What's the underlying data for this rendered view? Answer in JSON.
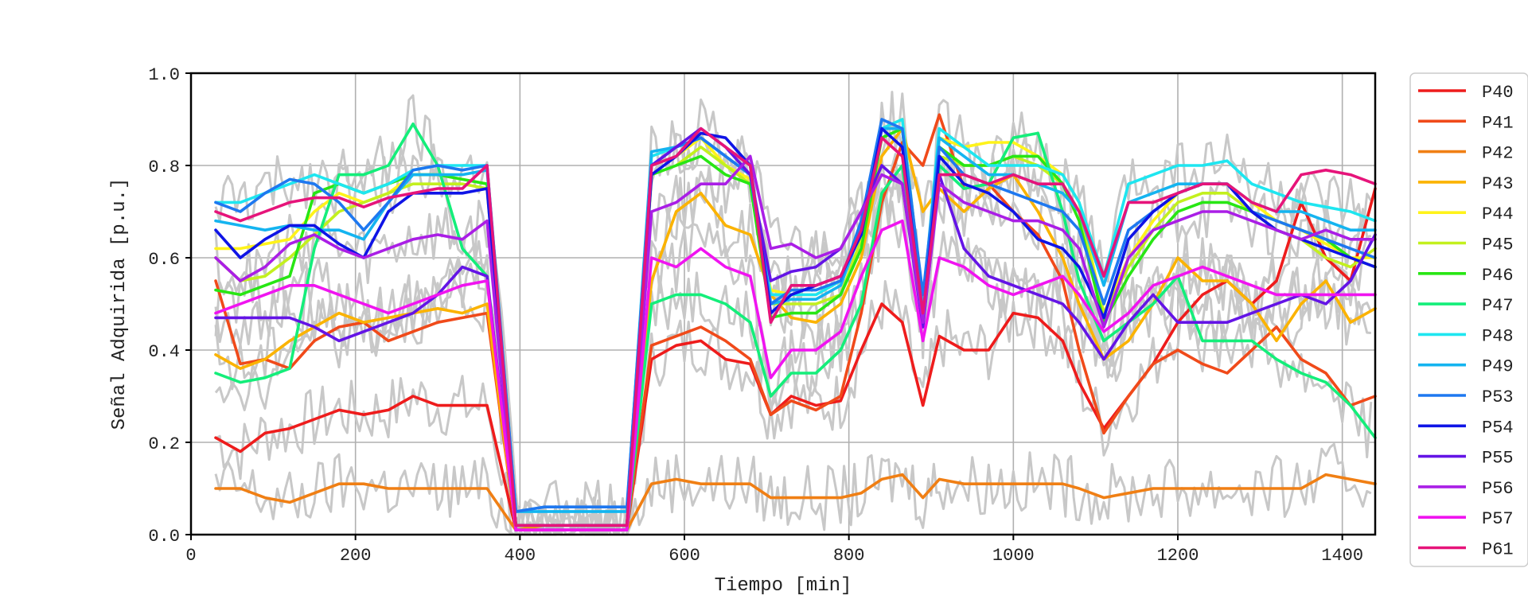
{
  "chart_data": {
    "type": "line",
    "title": "",
    "xlabel": "Tiempo [min]",
    "ylabel": "Señal Adquirida [p.u.]",
    "xlim": [
      0,
      1440
    ],
    "ylim": [
      0,
      1.0
    ],
    "xticks": [
      0,
      200,
      400,
      600,
      800,
      1000,
      1200,
      1400
    ],
    "yticks": [
      0.0,
      0.2,
      0.4,
      0.6,
      0.8,
      1.0
    ],
    "xtick_labels": [
      "0",
      "200",
      "400",
      "600",
      "800",
      "1000",
      "1200",
      "1400"
    ],
    "ytick_labels": [
      "0.0",
      "0.2",
      "0.4",
      "0.6",
      "0.8",
      "1.0"
    ],
    "grid": true,
    "legend_position": "right",
    "raw_signal_color": "#c8c8c8",
    "x": [
      30,
      60,
      90,
      120,
      150,
      180,
      210,
      240,
      270,
      300,
      330,
      360,
      395,
      430,
      470,
      500,
      530,
      560,
      590,
      620,
      650,
      680,
      705,
      730,
      760,
      790,
      815,
      840,
      865,
      890,
      910,
      940,
      970,
      1000,
      1030,
      1060,
      1080,
      1110,
      1140,
      1170,
      1200,
      1230,
      1260,
      1290,
      1320,
      1350,
      1380,
      1410,
      1440
    ],
    "series": [
      {
        "name": "P40",
        "color": "#ee1c1c",
        "values": [
          0.21,
          0.18,
          0.22,
          0.23,
          0.25,
          0.27,
          0.26,
          0.27,
          0.3,
          0.28,
          0.28,
          0.28,
          0.01,
          0.01,
          0.01,
          0.01,
          0.01,
          0.38,
          0.41,
          0.42,
          0.38,
          0.37,
          0.26,
          0.3,
          0.28,
          0.29,
          0.4,
          0.5,
          0.46,
          0.28,
          0.43,
          0.4,
          0.4,
          0.48,
          0.47,
          0.42,
          0.33,
          0.23,
          0.3,
          0.37,
          0.46,
          0.52,
          0.55,
          0.5,
          0.55,
          0.72,
          0.6,
          0.55,
          0.75
        ]
      },
      {
        "name": "P41",
        "color": "#f04a1a",
        "values": [
          0.55,
          0.37,
          0.38,
          0.36,
          0.42,
          0.45,
          0.46,
          0.42,
          0.44,
          0.46,
          0.47,
          0.48,
          0.01,
          0.01,
          0.01,
          0.01,
          0.01,
          0.41,
          0.43,
          0.45,
          0.42,
          0.38,
          0.26,
          0.29,
          0.27,
          0.3,
          0.48,
          0.72,
          0.85,
          0.8,
          0.91,
          0.75,
          0.76,
          0.7,
          0.65,
          0.55,
          0.4,
          0.22,
          0.3,
          0.37,
          0.4,
          0.37,
          0.35,
          0.4,
          0.45,
          0.38,
          0.35,
          0.28,
          0.3
        ]
      },
      {
        "name": "P42",
        "color": "#f07f14",
        "values": [
          0.1,
          0.1,
          0.08,
          0.07,
          0.09,
          0.11,
          0.11,
          0.1,
          0.1,
          0.1,
          0.1,
          0.1,
          0.01,
          0.01,
          0.01,
          0.01,
          0.01,
          0.11,
          0.12,
          0.11,
          0.11,
          0.11,
          0.08,
          0.08,
          0.08,
          0.08,
          0.09,
          0.12,
          0.13,
          0.08,
          0.12,
          0.11,
          0.11,
          0.11,
          0.11,
          0.11,
          0.1,
          0.08,
          0.09,
          0.1,
          0.1,
          0.1,
          0.1,
          0.1,
          0.1,
          0.1,
          0.13,
          0.12,
          0.11
        ]
      },
      {
        "name": "P43",
        "color": "#fbb300",
        "values": [
          0.39,
          0.36,
          0.38,
          0.42,
          0.45,
          0.48,
          0.46,
          0.47,
          0.48,
          0.49,
          0.48,
          0.5,
          0.01,
          0.02,
          0.02,
          0.02,
          0.02,
          0.55,
          0.7,
          0.74,
          0.67,
          0.65,
          0.52,
          0.47,
          0.46,
          0.5,
          0.6,
          0.82,
          0.88,
          0.7,
          0.75,
          0.7,
          0.75,
          0.78,
          0.7,
          0.6,
          0.5,
          0.38,
          0.42,
          0.5,
          0.6,
          0.55,
          0.55,
          0.5,
          0.42,
          0.5,
          0.55,
          0.46,
          0.49
        ]
      },
      {
        "name": "P44",
        "color": "#fff31a",
        "values": [
          0.62,
          0.62,
          0.63,
          0.64,
          0.7,
          0.74,
          0.72,
          0.74,
          0.78,
          0.78,
          0.77,
          0.76,
          0.02,
          0.02,
          0.02,
          0.02,
          0.02,
          0.8,
          0.82,
          0.86,
          0.8,
          0.77,
          0.53,
          0.52,
          0.52,
          0.55,
          0.66,
          0.88,
          0.9,
          0.5,
          0.86,
          0.84,
          0.85,
          0.85,
          0.82,
          0.78,
          0.72,
          0.48,
          0.6,
          0.68,
          0.74,
          0.76,
          0.76,
          0.72,
          0.68,
          0.66,
          0.63,
          0.6,
          0.6
        ]
      },
      {
        "name": "P45",
        "color": "#c3f01e",
        "values": [
          0.6,
          0.55,
          0.56,
          0.6,
          0.65,
          0.7,
          0.72,
          0.74,
          0.76,
          0.76,
          0.76,
          0.75,
          0.02,
          0.02,
          0.02,
          0.02,
          0.02,
          0.78,
          0.8,
          0.84,
          0.8,
          0.76,
          0.5,
          0.5,
          0.5,
          0.52,
          0.64,
          0.86,
          0.88,
          0.48,
          0.82,
          0.8,
          0.8,
          0.82,
          0.8,
          0.76,
          0.7,
          0.48,
          0.58,
          0.66,
          0.72,
          0.74,
          0.74,
          0.7,
          0.66,
          0.64,
          0.6,
          0.58,
          0.62
        ]
      },
      {
        "name": "P46",
        "color": "#28e614",
        "values": [
          0.53,
          0.52,
          0.54,
          0.56,
          0.74,
          0.76,
          0.74,
          0.76,
          0.78,
          0.78,
          0.77,
          0.76,
          0.02,
          0.02,
          0.02,
          0.02,
          0.02,
          0.78,
          0.8,
          0.82,
          0.78,
          0.76,
          0.47,
          0.48,
          0.48,
          0.52,
          0.62,
          0.86,
          0.88,
          0.46,
          0.84,
          0.8,
          0.8,
          0.82,
          0.82,
          0.76,
          0.68,
          0.46,
          0.56,
          0.64,
          0.7,
          0.72,
          0.72,
          0.7,
          0.68,
          0.66,
          0.64,
          0.6,
          0.58
        ]
      },
      {
        "name": "P47",
        "color": "#14ee7a",
        "values": [
          0.35,
          0.33,
          0.34,
          0.36,
          0.62,
          0.78,
          0.78,
          0.8,
          0.89,
          0.8,
          0.62,
          0.56,
          0.01,
          0.01,
          0.01,
          0.01,
          0.01,
          0.5,
          0.52,
          0.52,
          0.5,
          0.46,
          0.3,
          0.35,
          0.35,
          0.4,
          0.5,
          0.74,
          0.8,
          0.45,
          0.8,
          0.75,
          0.76,
          0.86,
          0.87,
          0.7,
          0.55,
          0.42,
          0.46,
          0.5,
          0.56,
          0.42,
          0.42,
          0.42,
          0.38,
          0.35,
          0.33,
          0.28,
          0.21
        ]
      },
      {
        "name": "P48",
        "color": "#1ee6f0",
        "values": [
          0.72,
          0.72,
          0.74,
          0.76,
          0.78,
          0.76,
          0.74,
          0.76,
          0.79,
          0.8,
          0.8,
          0.8,
          0.05,
          0.05,
          0.05,
          0.05,
          0.05,
          0.82,
          0.84,
          0.86,
          0.82,
          0.78,
          0.52,
          0.52,
          0.52,
          0.55,
          0.68,
          0.88,
          0.9,
          0.5,
          0.88,
          0.84,
          0.8,
          0.8,
          0.8,
          0.78,
          0.72,
          0.56,
          0.76,
          0.78,
          0.8,
          0.8,
          0.81,
          0.76,
          0.74,
          0.72,
          0.71,
          0.7,
          0.68
        ]
      },
      {
        "name": "P49",
        "color": "#14b4f0",
        "values": [
          0.68,
          0.67,
          0.66,
          0.67,
          0.66,
          0.66,
          0.64,
          0.72,
          0.78,
          0.78,
          0.78,
          0.79,
          0.05,
          0.05,
          0.05,
          0.05,
          0.05,
          0.83,
          0.84,
          0.86,
          0.82,
          0.78,
          0.5,
          0.51,
          0.51,
          0.54,
          0.66,
          0.88,
          0.88,
          0.5,
          0.86,
          0.82,
          0.78,
          0.78,
          0.76,
          0.74,
          0.7,
          0.54,
          0.72,
          0.74,
          0.76,
          0.76,
          0.76,
          0.72,
          0.7,
          0.7,
          0.68,
          0.66,
          0.66
        ]
      },
      {
        "name": "P53",
        "color": "#1e78f0",
        "values": [
          0.72,
          0.7,
          0.74,
          0.77,
          0.76,
          0.72,
          0.66,
          0.72,
          0.79,
          0.8,
          0.79,
          0.8,
          0.05,
          0.06,
          0.06,
          0.06,
          0.06,
          0.8,
          0.84,
          0.86,
          0.82,
          0.78,
          0.5,
          0.53,
          0.53,
          0.55,
          0.68,
          0.9,
          0.88,
          0.52,
          0.84,
          0.78,
          0.76,
          0.74,
          0.72,
          0.7,
          0.66,
          0.5,
          0.66,
          0.7,
          0.74,
          0.76,
          0.76,
          0.7,
          0.68,
          0.66,
          0.64,
          0.62,
          0.6
        ]
      },
      {
        "name": "P54",
        "color": "#0f14e6",
        "values": [
          0.66,
          0.6,
          0.64,
          0.67,
          0.67,
          0.63,
          0.6,
          0.7,
          0.74,
          0.74,
          0.74,
          0.75,
          0.02,
          0.02,
          0.02,
          0.02,
          0.02,
          0.78,
          0.82,
          0.87,
          0.86,
          0.8,
          0.48,
          0.52,
          0.54,
          0.56,
          0.65,
          0.88,
          0.84,
          0.47,
          0.82,
          0.76,
          0.74,
          0.7,
          0.64,
          0.62,
          0.58,
          0.47,
          0.64,
          0.7,
          0.74,
          0.76,
          0.76,
          0.7,
          0.66,
          0.64,
          0.62,
          0.6,
          0.58
        ]
      },
      {
        "name": "P55",
        "color": "#6414e6",
        "values": [
          0.47,
          0.47,
          0.47,
          0.47,
          0.45,
          0.42,
          0.44,
          0.46,
          0.48,
          0.52,
          0.58,
          0.56,
          0.01,
          0.01,
          0.01,
          0.01,
          0.01,
          0.8,
          0.84,
          0.88,
          0.84,
          0.78,
          0.55,
          0.57,
          0.58,
          0.62,
          0.7,
          0.8,
          0.76,
          0.45,
          0.78,
          0.62,
          0.56,
          0.54,
          0.52,
          0.5,
          0.46,
          0.38,
          0.46,
          0.52,
          0.46,
          0.46,
          0.46,
          0.48,
          0.5,
          0.52,
          0.5,
          0.55,
          0.65
        ]
      },
      {
        "name": "P56",
        "color": "#aa1ee6",
        "values": [
          0.6,
          0.55,
          0.58,
          0.63,
          0.65,
          0.62,
          0.6,
          0.62,
          0.64,
          0.65,
          0.64,
          0.68,
          0.01,
          0.01,
          0.01,
          0.01,
          0.01,
          0.7,
          0.72,
          0.76,
          0.76,
          0.82,
          0.62,
          0.63,
          0.6,
          0.62,
          0.7,
          0.78,
          0.76,
          0.46,
          0.76,
          0.72,
          0.7,
          0.68,
          0.68,
          0.66,
          0.62,
          0.45,
          0.6,
          0.66,
          0.68,
          0.7,
          0.7,
          0.68,
          0.66,
          0.64,
          0.66,
          0.64,
          0.64
        ]
      },
      {
        "name": "P57",
        "color": "#f014f0",
        "values": [
          0.48,
          0.5,
          0.52,
          0.54,
          0.54,
          0.52,
          0.5,
          0.48,
          0.5,
          0.52,
          0.54,
          0.55,
          0.01,
          0.01,
          0.01,
          0.01,
          0.01,
          0.6,
          0.58,
          0.62,
          0.58,
          0.56,
          0.34,
          0.4,
          0.4,
          0.44,
          0.56,
          0.66,
          0.68,
          0.42,
          0.6,
          0.58,
          0.54,
          0.52,
          0.54,
          0.56,
          0.52,
          0.44,
          0.48,
          0.54,
          0.56,
          0.58,
          0.56,
          0.54,
          0.52,
          0.52,
          0.52,
          0.52,
          0.52
        ]
      },
      {
        "name": "P61",
        "color": "#e6147a",
        "values": [
          0.7,
          0.68,
          0.7,
          0.72,
          0.73,
          0.73,
          0.71,
          0.73,
          0.74,
          0.75,
          0.75,
          0.8,
          0.02,
          0.02,
          0.02,
          0.02,
          0.02,
          0.8,
          0.82,
          0.88,
          0.84,
          0.8,
          0.46,
          0.54,
          0.54,
          0.56,
          0.66,
          0.86,
          0.82,
          0.48,
          0.78,
          0.78,
          0.76,
          0.78,
          0.76,
          0.76,
          0.7,
          0.56,
          0.72,
          0.72,
          0.74,
          0.76,
          0.76,
          0.72,
          0.7,
          0.78,
          0.79,
          0.78,
          0.76
        ]
      }
    ]
  }
}
